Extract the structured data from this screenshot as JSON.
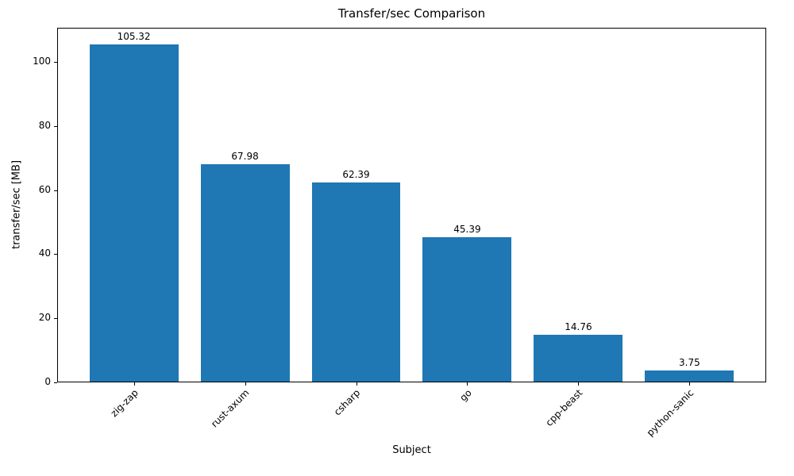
{
  "chart_data": {
    "type": "bar",
    "title": "Transfer/sec Comparison",
    "xlabel": "Subject",
    "ylabel": "transfer/sec [MB]",
    "categories": [
      "zig-zap",
      "rust-axum",
      "csharp",
      "go",
      "cpp-beast",
      "python-sanic"
    ],
    "values": [
      105.32,
      67.98,
      62.39,
      45.39,
      14.76,
      3.75
    ],
    "value_labels": [
      "105.32",
      "67.98",
      "62.39",
      "45.39",
      "14.76",
      "3.75"
    ],
    "yticks": [
      0,
      20,
      40,
      60,
      80,
      100
    ],
    "ylim": [
      0,
      110.6
    ],
    "xlim": [
      -0.69,
      5.69
    ],
    "bar_width_units": 0.8,
    "bar_color": "#1f77b4",
    "grid": false,
    "legend": "none",
    "x_tick_rotation_deg": 45
  }
}
